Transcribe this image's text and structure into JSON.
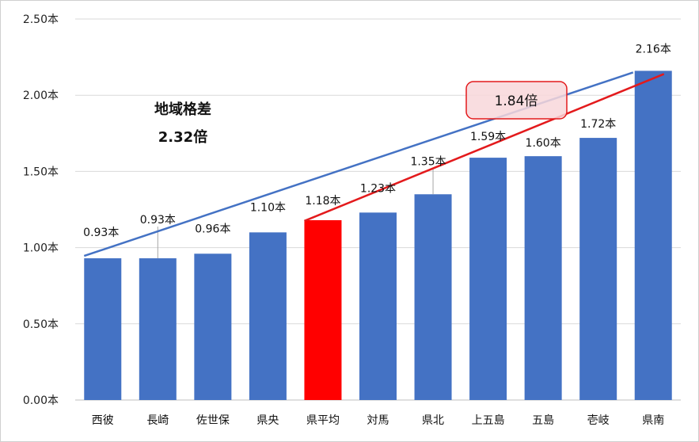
{
  "chart_data": {
    "type": "bar",
    "categories": [
      "西彼",
      "長崎",
      "佐世保",
      "県央",
      "県平均",
      "対馬",
      "県北",
      "上五島",
      "五島",
      "壱岐",
      "県南"
    ],
    "values": [
      0.93,
      0.93,
      0.96,
      1.1,
      1.18,
      1.23,
      1.35,
      1.59,
      1.6,
      1.72,
      2.16
    ],
    "data_labels": [
      "0.93本",
      "0.93本",
      "0.96本",
      "1.10本",
      "1.18本",
      "1.23本",
      "1.35本",
      "1.59本",
      "1.60本",
      "1.72本",
      "2.16本"
    ],
    "y_ticks": [
      "0.00本",
      "0.50本",
      "1.00本",
      "1.50本",
      "2.00本",
      "2.50本"
    ],
    "ylim": [
      0,
      2.5
    ],
    "grid": true,
    "highlight_category": "県平均",
    "colors": {
      "bar": "#4472C4",
      "highlight": "#FF0000",
      "grid": "#D9D9D9",
      "blue_line": "#4472C4",
      "red_line": "#E31A1C",
      "callout_fill": "#F8D7DA"
    },
    "annotations": {
      "title_line1": "地域格差",
      "title_line2": "2.32倍",
      "callout": "1.84倍"
    }
  }
}
